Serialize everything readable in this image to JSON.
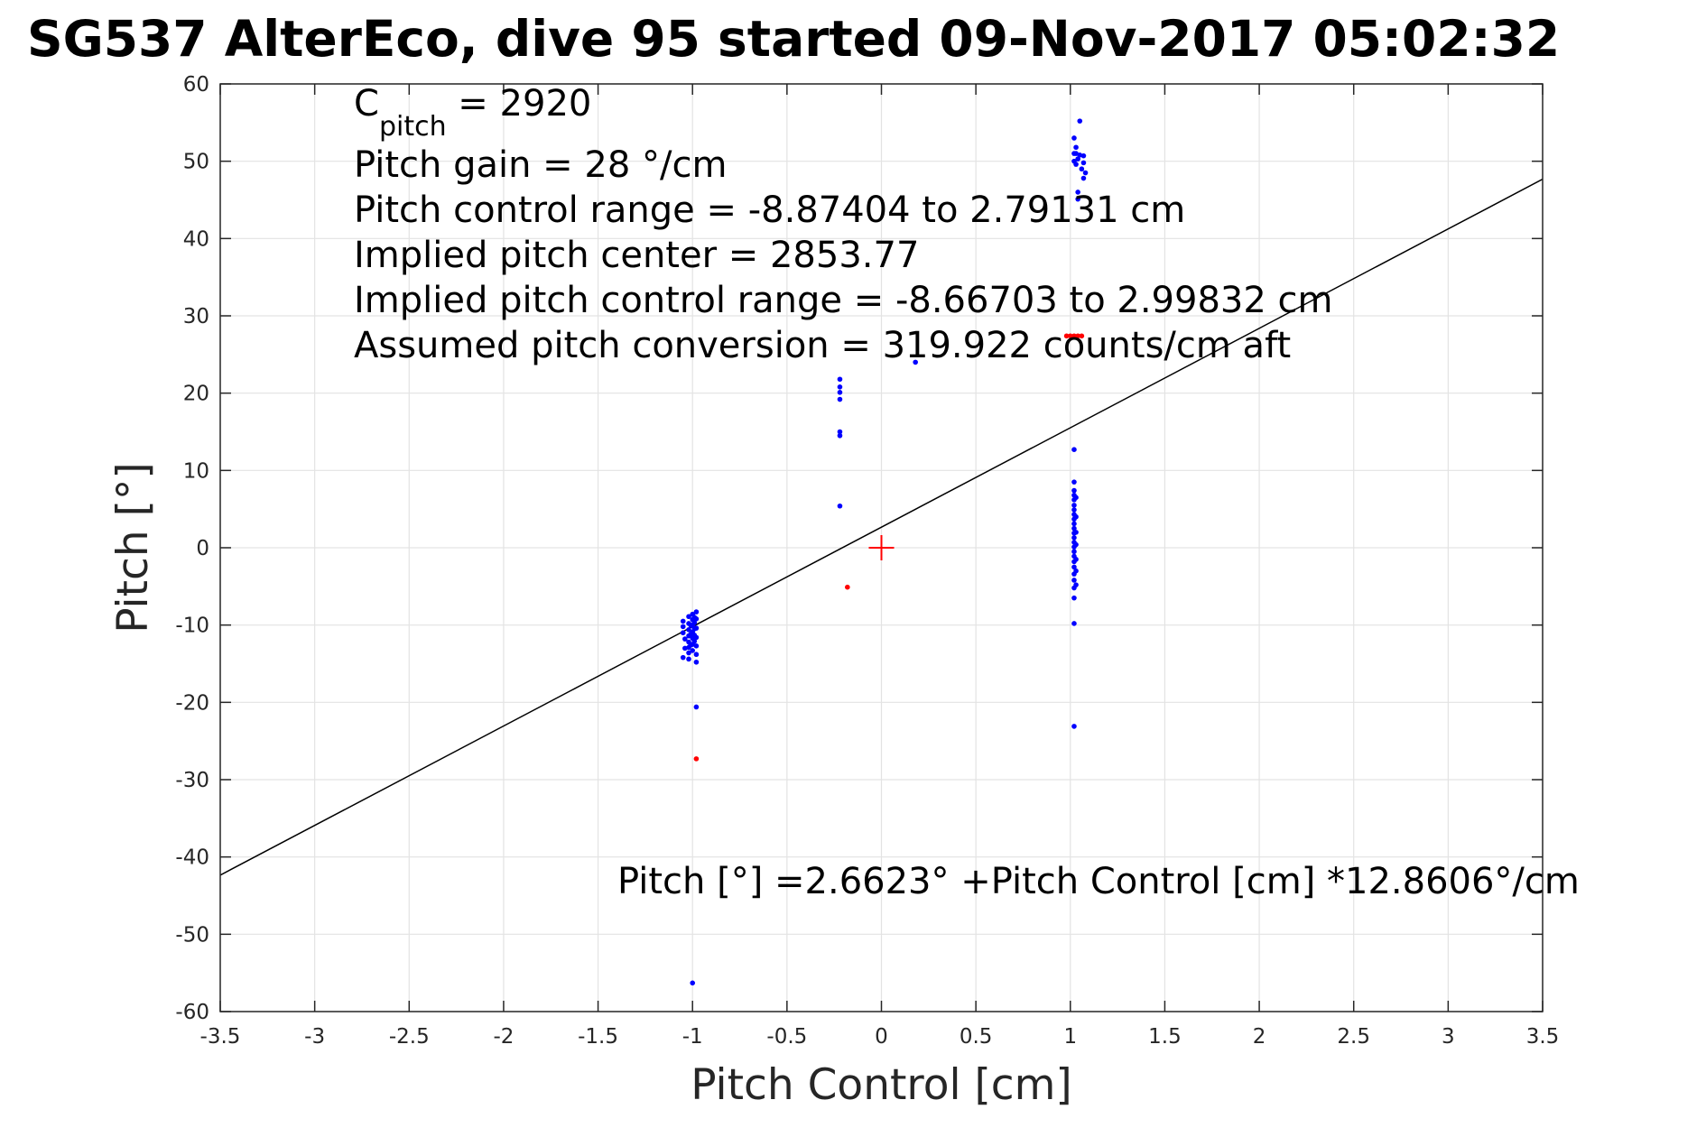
{
  "chart_data": {
    "type": "scatter",
    "title": "SG537 AlterEco, dive 95 started 09-Nov-2017 05:02:32",
    "xlabel": "Pitch Control [cm]",
    "ylabel": "Pitch [°]",
    "xlim": [
      -3.5,
      3.5
    ],
    "ylim": [
      -60,
      60
    ],
    "xticks": [
      -3.5,
      -3,
      -2.5,
      -2,
      -1.5,
      -1,
      -0.5,
      0,
      0.5,
      1,
      1.5,
      2,
      2.5,
      3,
      3.5
    ],
    "yticks": [
      -60,
      -50,
      -40,
      -30,
      -20,
      -10,
      0,
      10,
      20,
      30,
      40,
      50,
      60
    ],
    "xtick_labels": [
      "-3.5",
      "-3",
      "-2.5",
      "-2",
      "-1.5",
      "-1",
      "-0.5",
      "0",
      "0.5",
      "1",
      "1.5",
      "2",
      "2.5",
      "3",
      "3.5"
    ],
    "ytick_labels": [
      "-60",
      "-50",
      "-40",
      "-30",
      "-20",
      "-10",
      "0",
      "10",
      "20",
      "30",
      "40",
      "50",
      "60"
    ],
    "grid": true,
    "annotations": {
      "c_pitch_base": "C",
      "c_pitch_sub": "pitch",
      "c_pitch_value": " = 2920",
      "gain": "Pitch gain = 28 °/cm",
      "control_range": "Pitch control range = -8.87404 to 2.79131 cm",
      "implied_center": "Implied pitch center = 2853.77",
      "implied_range": "Implied pitch control range = -8.66703 to 2.99832 cm",
      "conversion": "Assumed pitch conversion = 319.922 counts/cm aft",
      "fit_equation": "Pitch [°] =2.6623° +Pitch Control [cm] *12.8606°/cm"
    },
    "fit_line": {
      "intercept": 2.6623,
      "slope": 12.8606,
      "color": "#000000"
    },
    "center_marker": {
      "x": 0,
      "y": 0,
      "color": "#ff0000"
    },
    "series": [
      {
        "color": "#0000ff",
        "points": [
          [
            -1.05,
            -9.5
          ],
          [
            -1.05,
            -10.2
          ],
          [
            -1.05,
            -11.0
          ],
          [
            -1.04,
            -11.8
          ],
          [
            -1.04,
            -13.0
          ],
          [
            -1.05,
            -14.2
          ],
          [
            -1.02,
            -8.9
          ],
          [
            -1.02,
            -9.8
          ],
          [
            -1.02,
            -10.6
          ],
          [
            -1.02,
            -11.4
          ],
          [
            -1.02,
            -12.2
          ],
          [
            -1.02,
            -12.9
          ],
          [
            -1.02,
            -13.6
          ],
          [
            -1.02,
            -14.4
          ],
          [
            -1.01,
            -10.0
          ],
          [
            -1.01,
            -11.2
          ],
          [
            -1.01,
            -12.6
          ],
          [
            -1.0,
            -8.6
          ],
          [
            -1.0,
            -9.3
          ],
          [
            -1.0,
            -10.1
          ],
          [
            -1.0,
            -10.9
          ],
          [
            -1.0,
            -11.7
          ],
          [
            -1.0,
            -12.5
          ],
          [
            -1.0,
            -13.3
          ],
          [
            -0.99,
            -9.0
          ],
          [
            -0.99,
            -9.7
          ],
          [
            -0.99,
            -10.5
          ],
          [
            -0.99,
            -11.3
          ],
          [
            -0.99,
            -12.1
          ],
          [
            -0.98,
            -8.3
          ],
          [
            -0.98,
            -9.2
          ],
          [
            -0.98,
            -10.4
          ],
          [
            -0.98,
            -11.6
          ],
          [
            -0.98,
            -12.7
          ],
          [
            -0.98,
            -13.8
          ],
          [
            -0.98,
            -14.8
          ],
          [
            -0.98,
            -20.6
          ],
          [
            -1.0,
            -56.3
          ],
          [
            -0.22,
            21.8
          ],
          [
            -0.22,
            20.8
          ],
          [
            -0.22,
            20.1
          ],
          [
            -0.22,
            19.2
          ],
          [
            -0.22,
            15.0
          ],
          [
            -0.22,
            14.5
          ],
          [
            -0.22,
            5.4
          ],
          [
            0.18,
            24.0
          ],
          [
            1.02,
            53.0
          ],
          [
            1.03,
            51.8
          ],
          [
            1.03,
            51.0
          ],
          [
            1.04,
            50.3
          ],
          [
            1.03,
            49.6
          ],
          [
            1.05,
            55.2
          ],
          [
            1.05,
            50.8
          ],
          [
            1.06,
            49.0
          ],
          [
            1.07,
            50.7
          ],
          [
            1.07,
            49.8
          ],
          [
            1.08,
            48.5
          ],
          [
            1.07,
            47.8
          ],
          [
            1.04,
            46.0
          ],
          [
            1.04,
            45.1
          ],
          [
            1.02,
            50.0
          ],
          [
            1.02,
            51.0
          ],
          [
            1.02,
            12.7
          ],
          [
            1.02,
            8.5
          ],
          [
            1.02,
            7.4
          ],
          [
            1.02,
            6.8
          ],
          [
            1.02,
            6.2
          ],
          [
            1.02,
            5.5
          ],
          [
            1.02,
            4.9
          ],
          [
            1.02,
            4.3
          ],
          [
            1.02,
            3.7
          ],
          [
            1.02,
            3.1
          ],
          [
            1.02,
            2.5
          ],
          [
            1.02,
            1.9
          ],
          [
            1.02,
            1.3
          ],
          [
            1.02,
            0.7
          ],
          [
            1.02,
            0.1
          ],
          [
            1.02,
            -0.5
          ],
          [
            1.02,
            -1.1
          ],
          [
            1.02,
            -1.8
          ],
          [
            1.02,
            -2.5
          ],
          [
            1.02,
            -3.4
          ],
          [
            1.02,
            -4.2
          ],
          [
            1.02,
            -5.2
          ],
          [
            1.02,
            -6.5
          ],
          [
            1.02,
            -9.8
          ],
          [
            1.02,
            -23.1
          ],
          [
            1.03,
            6.5
          ],
          [
            1.03,
            4.0
          ],
          [
            1.03,
            2.0
          ],
          [
            1.03,
            0.4
          ],
          [
            1.03,
            -1.5
          ],
          [
            1.03,
            -3.0
          ],
          [
            1.03,
            -4.8
          ]
        ]
      },
      {
        "color": "#ff0000",
        "points": [
          [
            -0.98,
            -27.3
          ],
          [
            -0.18,
            -5.1
          ],
          [
            0.98,
            27.4
          ],
          [
            1.0,
            27.4
          ],
          [
            1.02,
            27.4
          ],
          [
            1.04,
            27.4
          ],
          [
            1.06,
            27.4
          ]
        ]
      }
    ]
  }
}
